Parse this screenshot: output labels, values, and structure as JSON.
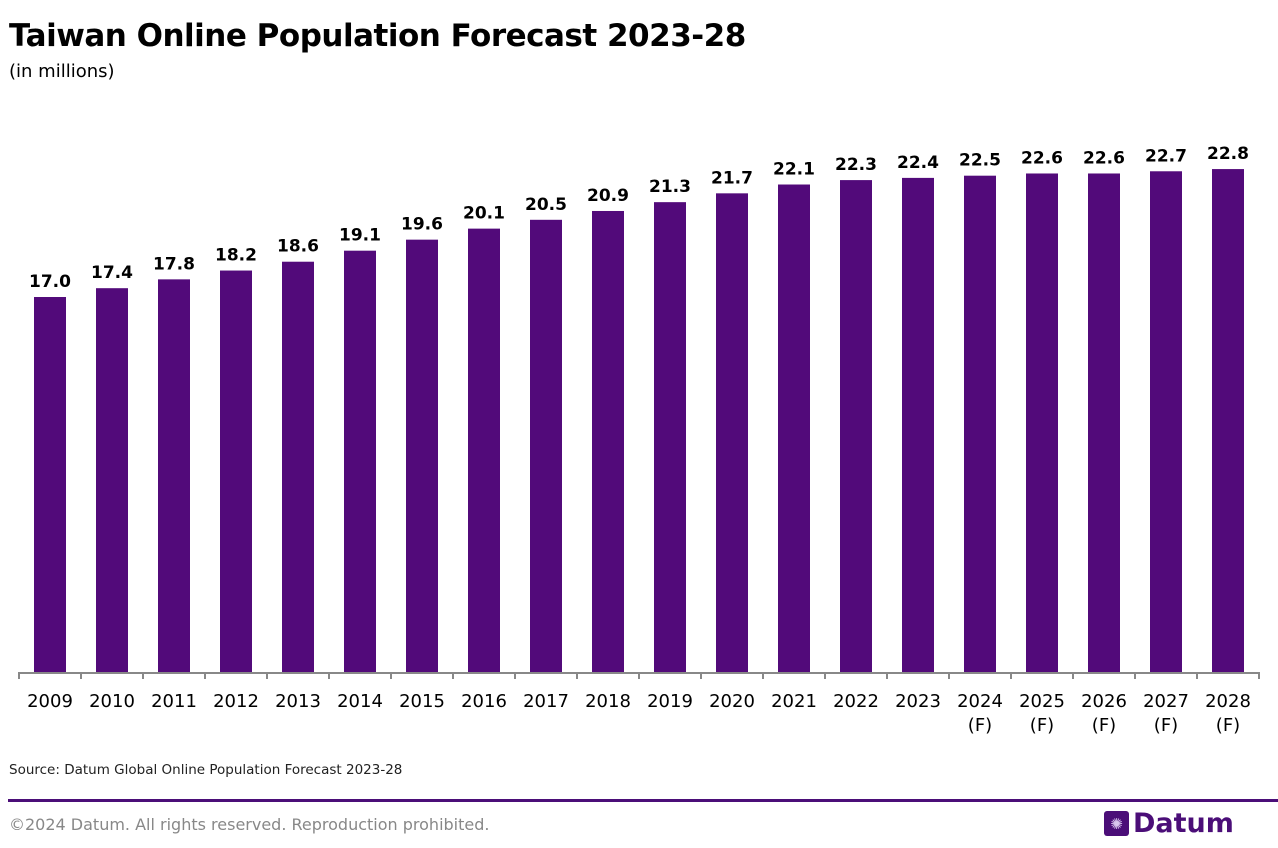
{
  "colors": {
    "bar": "#520a7a",
    "brand": "#4b0e78",
    "axis": "#888888"
  },
  "footer": {
    "source": "Source: Datum Global Online Population Forecast 2023-28",
    "copyright": "©2024 Datum. All rights reserved. Reproduction prohibited.",
    "logo_text": "Datum",
    "logo_icon": "globe-grid-icon"
  },
  "chart_data": {
    "type": "bar",
    "title": "Taiwan Online Population Forecast 2023-28",
    "subtitle": "(in millions)",
    "categories": [
      [
        "2009"
      ],
      [
        "2010"
      ],
      [
        "2011"
      ],
      [
        "2012"
      ],
      [
        "2013"
      ],
      [
        "2014"
      ],
      [
        "2015"
      ],
      [
        "2016"
      ],
      [
        "2017"
      ],
      [
        "2018"
      ],
      [
        "2019"
      ],
      [
        "2020"
      ],
      [
        "2021"
      ],
      [
        "2022"
      ],
      [
        "2023"
      ],
      [
        "2024",
        "(F)"
      ],
      [
        "2025",
        "(F)"
      ],
      [
        "2026",
        "(F)"
      ],
      [
        "2027",
        "(F)"
      ],
      [
        "2028",
        "(F)"
      ]
    ],
    "values": [
      17.0,
      17.4,
      17.8,
      18.2,
      18.6,
      19.1,
      19.6,
      20.1,
      20.5,
      20.9,
      21.3,
      21.7,
      22.1,
      22.3,
      22.4,
      22.5,
      22.6,
      22.6,
      22.7,
      22.8
    ],
    "data_labels": [
      "17.0",
      "17.4",
      "17.8",
      "18.2",
      "18.6",
      "19.1",
      "19.6",
      "20.1",
      "20.5",
      "20.9",
      "21.3",
      "21.7",
      "22.1",
      "22.3",
      "22.4",
      "22.5",
      "22.6",
      "22.6",
      "22.7",
      "22.8"
    ],
    "xlabel": "",
    "ylabel": "",
    "ylim": [
      0,
      24
    ],
    "grid": false,
    "legend": "none",
    "y_axis_visible": false
  }
}
